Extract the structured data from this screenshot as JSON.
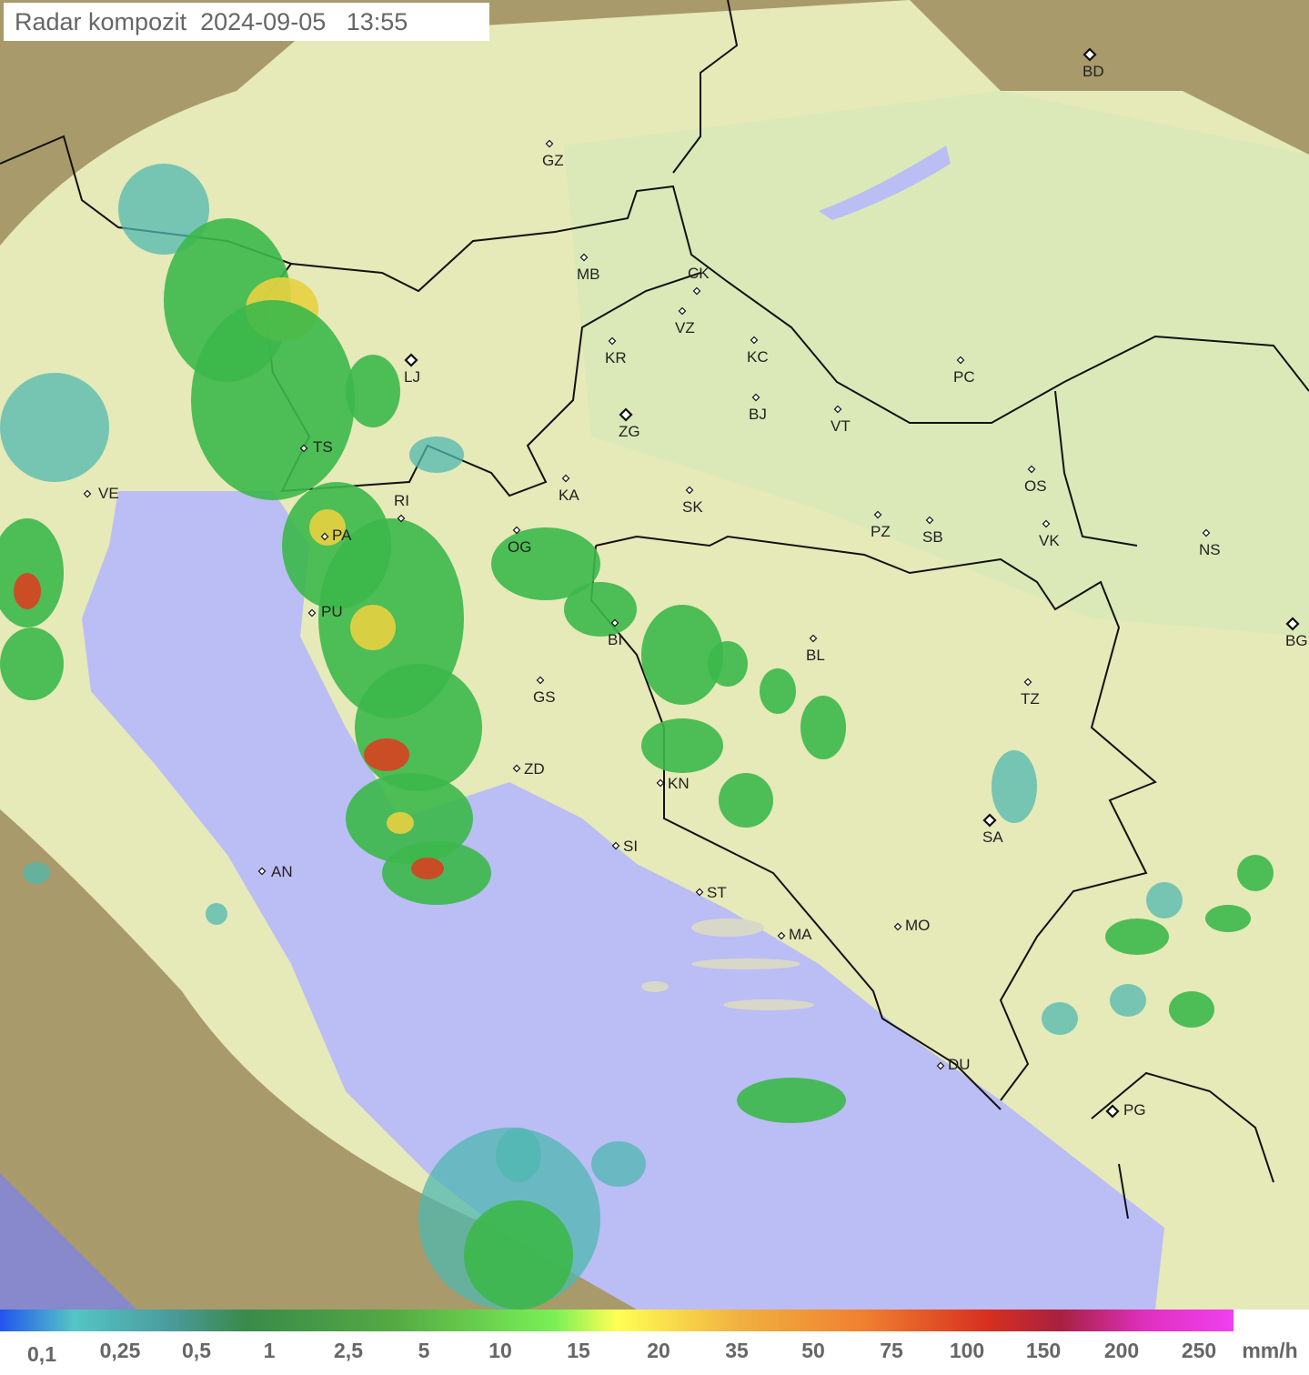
{
  "header": {
    "title": "Radar kompozit",
    "date": "2024-09-05",
    "time": "13:55"
  },
  "legend": {
    "unit": "mm/h",
    "ticks": [
      "0,1",
      "0,25",
      "0,5",
      "1",
      "2,5",
      "5",
      "10",
      "15",
      "20",
      "35",
      "50",
      "75",
      "100",
      "150",
      "200",
      "250"
    ],
    "colors": [
      "#2255ee",
      "#55c5c5",
      "#3a8a4a",
      "#7af056",
      "#ffff55",
      "#f0b040",
      "#d83020",
      "#a82040",
      "#f040f0"
    ]
  },
  "map": {
    "colors": {
      "sea": "#bbbdf5",
      "coverage": "#e6e9b8",
      "terrain": "#a89a6a",
      "echo_low": "#4fb8b0",
      "echo_mid": "#3cb84a",
      "echo_high": "#e8d040",
      "echo_max": "#d84020"
    },
    "cities": [
      "GZ",
      "MB",
      "CK",
      "VZ",
      "KR",
      "KC",
      "PC",
      "LJ",
      "BJ",
      "VT",
      "ZG",
      "TS",
      "VE",
      "KA",
      "SK",
      "RI",
      "OS",
      "PZ",
      "SB",
      "VK",
      "NS",
      "OG",
      "PA",
      "BI",
      "BL",
      "BG",
      "PU",
      "GS",
      "TZ",
      "ZD",
      "KN",
      "SA",
      "SI",
      "AN",
      "ST",
      "MA",
      "MO",
      "DU",
      "PG",
      "BD"
    ]
  }
}
